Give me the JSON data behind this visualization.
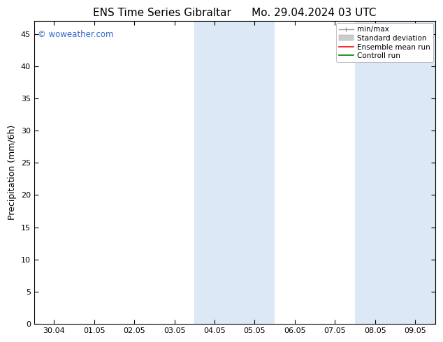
{
  "title": "ENS Time Series Gibraltar      Mo. 29.04.2024 03 UTC",
  "ylabel": "Precipitation (mm/6h)",
  "ylim": [
    0,
    47
  ],
  "yticks": [
    0,
    5,
    10,
    15,
    20,
    25,
    30,
    35,
    40,
    45
  ],
  "xtick_labels": [
    "30.04",
    "01.05",
    "02.05",
    "03.05",
    "04.05",
    "05.05",
    "06.05",
    "07.05",
    "08.05",
    "09.05"
  ],
  "xtick_positions": [
    0,
    1,
    2,
    3,
    4,
    5,
    6,
    7,
    8,
    9
  ],
  "xlim": [
    -0.5,
    9.5
  ],
  "shaded_regions": [
    {
      "xmin": 3.5,
      "xmax": 5.5
    },
    {
      "xmin": 7.5,
      "xmax": 9.5
    }
  ],
  "shaded_color": "#dce8f5",
  "background_color": "#ffffff",
  "watermark_text": "© woweather.com",
  "watermark_color": "#3366cc",
  "title_fontsize": 11,
  "axis_label_fontsize": 9,
  "tick_fontsize": 8,
  "legend_fontsize": 7.5
}
